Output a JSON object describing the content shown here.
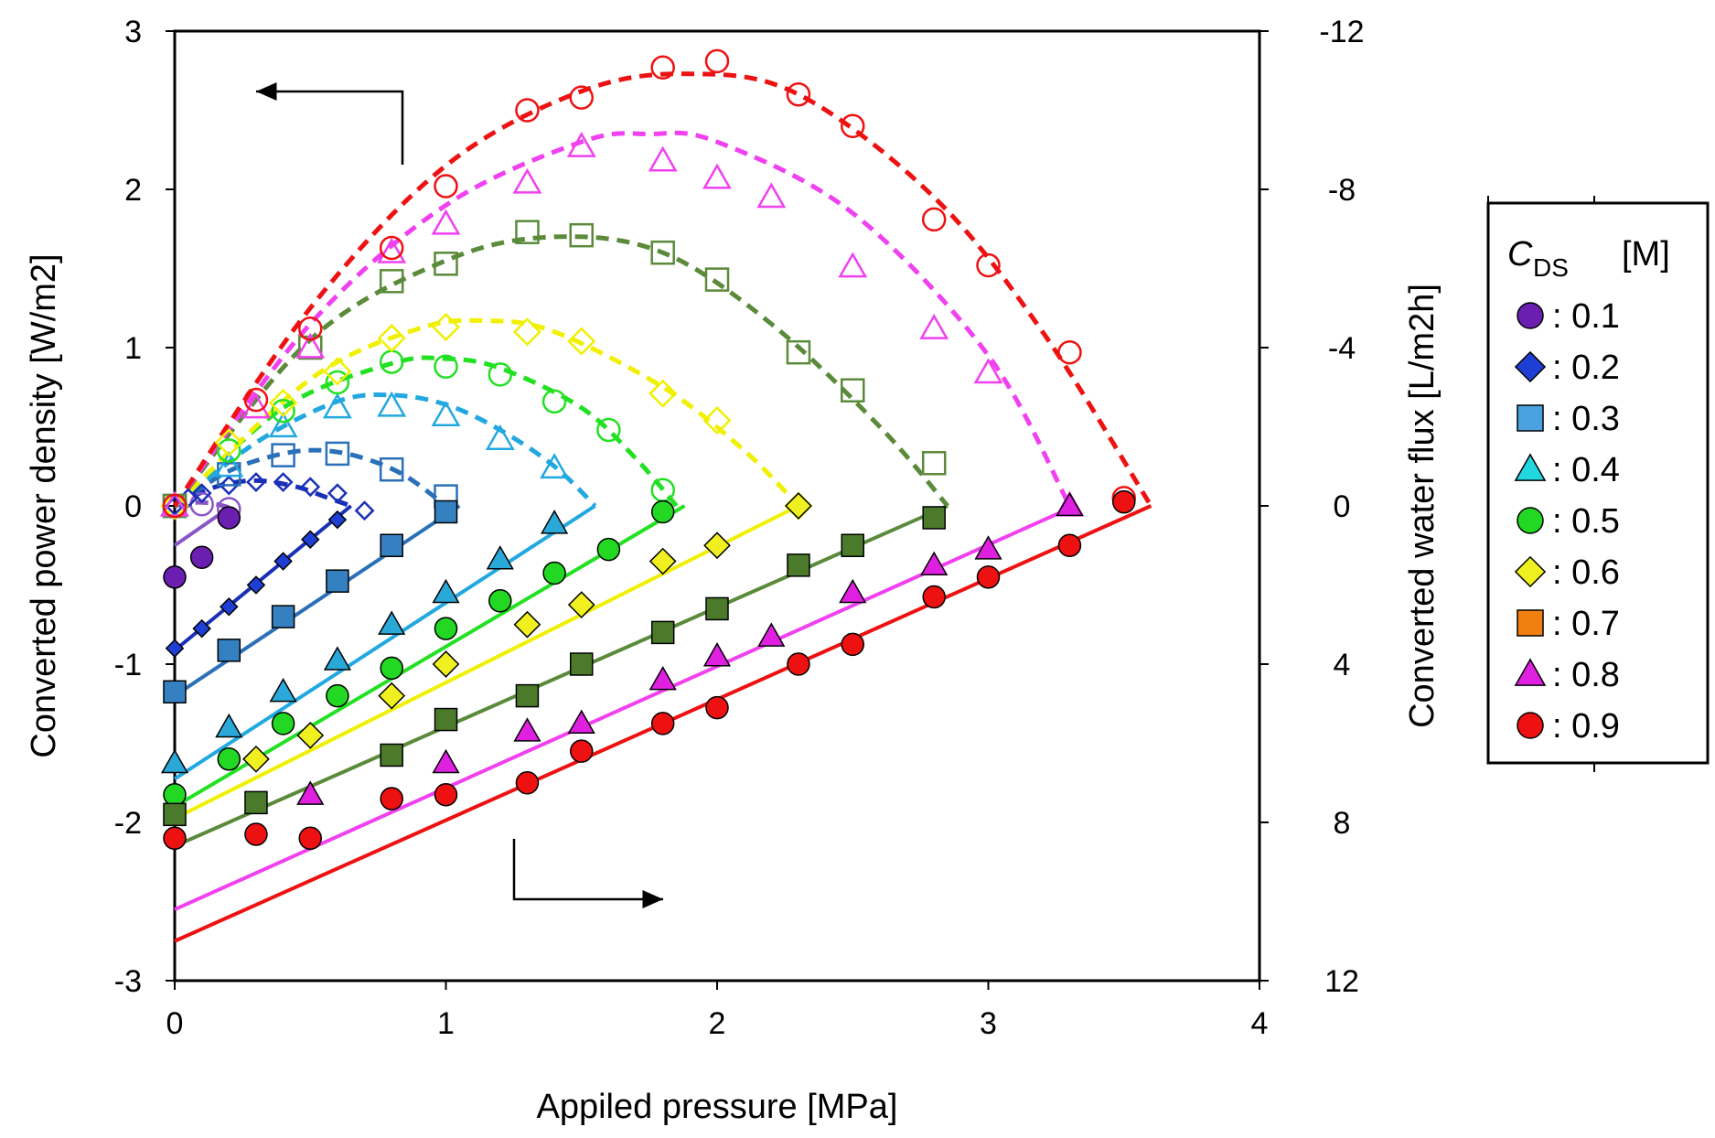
{
  "chart_data": {
    "type": "scatter",
    "title": "",
    "xlabel": "Appiled pressure [MPa]",
    "ylabel": "Converted power density [W/m2]",
    "ylabel_right": "Converted water flux [L/m2h]",
    "xlim": [
      0,
      4
    ],
    "ylim": [
      -3,
      3
    ],
    "y2lim": [
      12,
      -12
    ],
    "x_ticks": [
      "0",
      "1",
      "2",
      "3",
      "4"
    ],
    "y_ticks": [
      "3",
      "2",
      "1",
      "0",
      "-1",
      "-2",
      "-3"
    ],
    "y2_ticks": [
      "-12",
      "-8",
      "-4",
      "0",
      "4",
      "8",
      "12"
    ],
    "legend": {
      "title": "C",
      "title_sub": "DS",
      "title_unit": "[M]",
      "position": "right",
      "entries": [
        {
          "label": ": 0.1",
          "marker": "circle",
          "color": "#6a1fb0"
        },
        {
          "label": ": 0.2",
          "marker": "diamond",
          "color": "#1f3fd4"
        },
        {
          "label": ": 0.3",
          "marker": "square",
          "color": "#4aa3df"
        },
        {
          "label": ": 0.4",
          "marker": "triangle",
          "color": "#22d8e0"
        },
        {
          "label": ": 0.5",
          "marker": "circle",
          "color": "#22d822"
        },
        {
          "label": ": 0.6",
          "marker": "diamond",
          "color": "#f0f020"
        },
        {
          "label": ": 0.7",
          "marker": "square",
          "color": "#f08010"
        },
        {
          "label": ": 0.8",
          "marker": "triangle",
          "color": "#e020e0"
        },
        {
          "label": ": 0.9",
          "marker": "circle",
          "color": "#ee1111"
        }
      ]
    },
    "series": [
      {
        "name": "0.1",
        "marker": "circle",
        "fill": "#6a1fb0",
        "line": "#8a55c8",
        "power_x": [
          0,
          0.1,
          0.2
        ],
        "power_y": [
          0,
          0.01,
          -0.02
        ],
        "power_fit_x": [
          0,
          0.05,
          0.1,
          0.15,
          0.2
        ],
        "power_fit_y": [
          0,
          0.018,
          0.022,
          0.012,
          -0.01
        ],
        "flux_x": [
          0,
          0.1,
          0.2
        ],
        "flux_y": [
          1.8,
          1.3,
          0.3
        ],
        "flux_fit": [
          [
            0,
            1.0
          ],
          [
            0.2,
            0.05
          ]
        ]
      },
      {
        "name": "0.2",
        "marker": "diamond",
        "fill": "#1f3fd4",
        "line": "#1a2fb8",
        "power_x": [
          0,
          0.05,
          0.1,
          0.2,
          0.3,
          0.4,
          0.5,
          0.6,
          0.7
        ],
        "power_y": [
          0,
          0.05,
          0.08,
          0.13,
          0.15,
          0.15,
          0.12,
          0.08,
          -0.03
        ],
        "power_fit_x": [
          0,
          0.15,
          0.3,
          0.45,
          0.55,
          0.65
        ],
        "power_fit_y": [
          0,
          0.12,
          0.16,
          0.12,
          0.06,
          0.0
        ],
        "flux_x": [
          0,
          0.1,
          0.2,
          0.3,
          0.4,
          0.5,
          0.6
        ],
        "flux_y": [
          3.6,
          3.1,
          2.55,
          2.0,
          1.4,
          0.85,
          0.35
        ],
        "flux_fit": [
          [
            0,
            3.65
          ],
          [
            0.65,
            0.0
          ]
        ]
      },
      {
        "name": "0.3",
        "marker": "square",
        "fill": "#3580c0",
        "line": "#2a70b8",
        "power_x": [
          0,
          0.2,
          0.4,
          0.6,
          0.8,
          1.0
        ],
        "power_y": [
          0,
          0.2,
          0.32,
          0.33,
          0.23,
          0.06
        ],
        "power_fit_x": [
          0,
          0.2,
          0.4,
          0.55,
          0.7,
          0.85,
          1.0
        ],
        "power_fit_y": [
          0,
          0.22,
          0.33,
          0.35,
          0.3,
          0.19,
          0.0
        ],
        "flux_x": [
          0,
          0.2,
          0.4,
          0.6,
          0.8,
          1.0
        ],
        "flux_y": [
          4.7,
          3.65,
          2.8,
          1.9,
          1.0,
          0.15
        ],
        "flux_fit": [
          [
            0,
            4.8
          ],
          [
            1.05,
            0.0
          ]
        ]
      },
      {
        "name": "0.4",
        "marker": "triangle",
        "fill": "#2aa8d8",
        "line": "#22a8e0",
        "power_x": [
          0,
          0.2,
          0.4,
          0.6,
          0.8,
          1.0,
          1.2,
          1.4
        ],
        "power_y": [
          0,
          0.25,
          0.5,
          0.62,
          0.63,
          0.57,
          0.42,
          0.24
        ],
        "power_fit_x": [
          0,
          0.3,
          0.6,
          0.8,
          1.0,
          1.2,
          1.4,
          1.55
        ],
        "power_fit_y": [
          0,
          0.4,
          0.66,
          0.7,
          0.64,
          0.48,
          0.25,
          0.0
        ],
        "flux_x": [
          0,
          0.2,
          0.4,
          0.6,
          0.8,
          1.0,
          1.2,
          1.4
        ],
        "flux_y": [
          6.5,
          5.6,
          4.7,
          3.9,
          3.0,
          2.2,
          1.35,
          0.45
        ],
        "flux_fit": [
          [
            0,
            6.9
          ],
          [
            1.55,
            0.0
          ]
        ]
      },
      {
        "name": "0.5",
        "marker": "circle",
        "fill": "#22d822",
        "line": "#22e022",
        "power_x": [
          0,
          0.2,
          0.4,
          0.6,
          0.8,
          1.0,
          1.2,
          1.4,
          1.6,
          1.8
        ],
        "power_y": [
          0,
          0.35,
          0.6,
          0.78,
          0.91,
          0.88,
          0.83,
          0.66,
          0.48,
          0.1
        ],
        "power_fit_x": [
          0,
          0.4,
          0.8,
          1.0,
          1.2,
          1.5,
          1.7,
          1.85
        ],
        "power_fit_y": [
          0,
          0.62,
          0.9,
          0.93,
          0.87,
          0.62,
          0.3,
          0.0
        ],
        "flux_x": [
          0,
          0.2,
          0.4,
          0.6,
          0.8,
          1.0,
          1.2,
          1.4,
          1.6,
          1.8
        ],
        "flux_y": [
          7.3,
          6.4,
          5.5,
          4.8,
          4.1,
          3.1,
          2.4,
          1.7,
          1.1,
          0.15
        ],
        "flux_fit": [
          [
            0,
            7.6
          ],
          [
            1.88,
            0.0
          ]
        ]
      },
      {
        "name": "0.6",
        "marker": "diamond",
        "fill": "#f0f020",
        "line": "#f0f000",
        "power_x": [
          0,
          0.2,
          0.4,
          0.6,
          0.8,
          1.0,
          1.3,
          1.5,
          1.8,
          2.0,
          2.3
        ],
        "power_y": [
          0,
          0.4,
          0.65,
          0.85,
          1.06,
          1.13,
          1.1,
          1.04,
          0.71,
          0.54,
          0.0
        ],
        "power_fit_x": [
          0,
          0.5,
          0.9,
          1.15,
          1.4,
          1.8,
          2.1,
          2.3
        ],
        "power_fit_y": [
          0,
          0.8,
          1.12,
          1.17,
          1.1,
          0.75,
          0.35,
          0.0
        ],
        "flux_x": [
          0.3,
          0.5,
          0.8,
          1.0,
          1.3,
          1.5,
          1.8,
          2.0,
          2.3
        ],
        "flux_y": [
          6.4,
          5.8,
          4.8,
          4.0,
          3.0,
          2.5,
          1.4,
          1.0,
          0.0
        ],
        "flux_fit": [
          [
            0,
            7.9
          ],
          [
            2.3,
            0.0
          ]
        ]
      },
      {
        "name": "0.7",
        "marker": "square",
        "fill": "#4a7a2a",
        "line": "#5a8a3a",
        "power_x": [
          0,
          0.5,
          0.8,
          1.0,
          1.3,
          1.5,
          1.8,
          2.0,
          2.3,
          2.5,
          2.8
        ],
        "power_y": [
          0,
          1.0,
          1.42,
          1.53,
          1.73,
          1.71,
          1.6,
          1.43,
          0.97,
          0.73,
          0.27
        ],
        "power_fit_x": [
          0,
          0.5,
          1.0,
          1.4,
          1.8,
          2.2,
          2.6,
          2.85
        ],
        "power_fit_y": [
          0,
          1.05,
          1.55,
          1.7,
          1.6,
          1.15,
          0.5,
          0.0
        ],
        "flux_x": [
          0,
          0.3,
          0.8,
          1.0,
          1.3,
          1.5,
          1.8,
          2.0,
          2.3,
          2.5,
          2.8
        ],
        "flux_y": [
          7.8,
          7.5,
          6.3,
          5.4,
          4.8,
          4.0,
          3.2,
          2.6,
          1.5,
          1.0,
          0.3
        ],
        "flux_fit": [
          [
            0,
            8.6
          ],
          [
            2.85,
            0.0
          ]
        ]
      },
      {
        "name": "0.8",
        "marker": "triangle",
        "fill": "#e020e0",
        "line": "#f040f0",
        "power_x": [
          0,
          0.3,
          0.5,
          0.8,
          1.0,
          1.3,
          1.5,
          1.8,
          2.0,
          2.2,
          2.5,
          2.8,
          3.0,
          3.3
        ],
        "power_y": [
          0,
          0.62,
          1.0,
          1.6,
          1.78,
          2.04,
          2.27,
          2.18,
          2.07,
          1.95,
          1.51,
          1.12,
          0.84,
          0.0
        ],
        "power_fit_x": [
          0,
          0.5,
          1.0,
          1.5,
          1.75,
          2.0,
          2.5,
          3.0,
          3.3
        ],
        "power_fit_y": [
          0,
          1.15,
          1.9,
          2.3,
          2.35,
          2.3,
          1.85,
          0.95,
          0.0
        ],
        "flux_x": [
          0.5,
          1.0,
          1.3,
          1.5,
          1.8,
          2.0,
          2.2,
          2.5,
          2.8,
          3.0,
          3.3
        ],
        "flux_y": [
          7.3,
          6.5,
          5.7,
          5.5,
          4.4,
          3.8,
          3.3,
          2.2,
          1.5,
          1.1,
          0.0
        ],
        "flux_fit": [
          [
            0,
            10.2
          ],
          [
            3.32,
            0.0
          ]
        ]
      },
      {
        "name": "0.9",
        "marker": "circle",
        "fill": "#ee1111",
        "line": "#ee1111",
        "power_x": [
          0,
          0.3,
          0.5,
          0.8,
          1.0,
          1.3,
          1.5,
          1.8,
          2.0,
          2.3,
          2.5,
          2.8,
          3.0,
          3.3,
          3.5
        ],
        "power_y": [
          0,
          0.67,
          1.12,
          1.63,
          2.02,
          2.5,
          2.58,
          2.77,
          2.81,
          2.6,
          2.4,
          1.81,
          1.52,
          0.97,
          0.05
        ],
        "power_fit_x": [
          0,
          0.5,
          1.0,
          1.5,
          1.9,
          2.3,
          2.8,
          3.2,
          3.6
        ],
        "power_fit_y": [
          0,
          1.25,
          2.15,
          2.62,
          2.73,
          2.6,
          1.95,
          1.1,
          0.0
        ],
        "flux_x": [
          0,
          0.3,
          0.5,
          0.8,
          1.0,
          1.3,
          1.5,
          1.8,
          2.0,
          2.3,
          2.5,
          2.8,
          3.0,
          3.3,
          3.5
        ],
        "flux_y": [
          8.4,
          8.3,
          8.4,
          7.4,
          7.3,
          7.0,
          6.2,
          5.5,
          5.1,
          4.0,
          3.5,
          2.3,
          1.8,
          1.0,
          -0.1
        ],
        "flux_fit": [
          [
            0,
            11.0
          ],
          [
            3.6,
            0.0
          ]
        ]
      }
    ]
  }
}
